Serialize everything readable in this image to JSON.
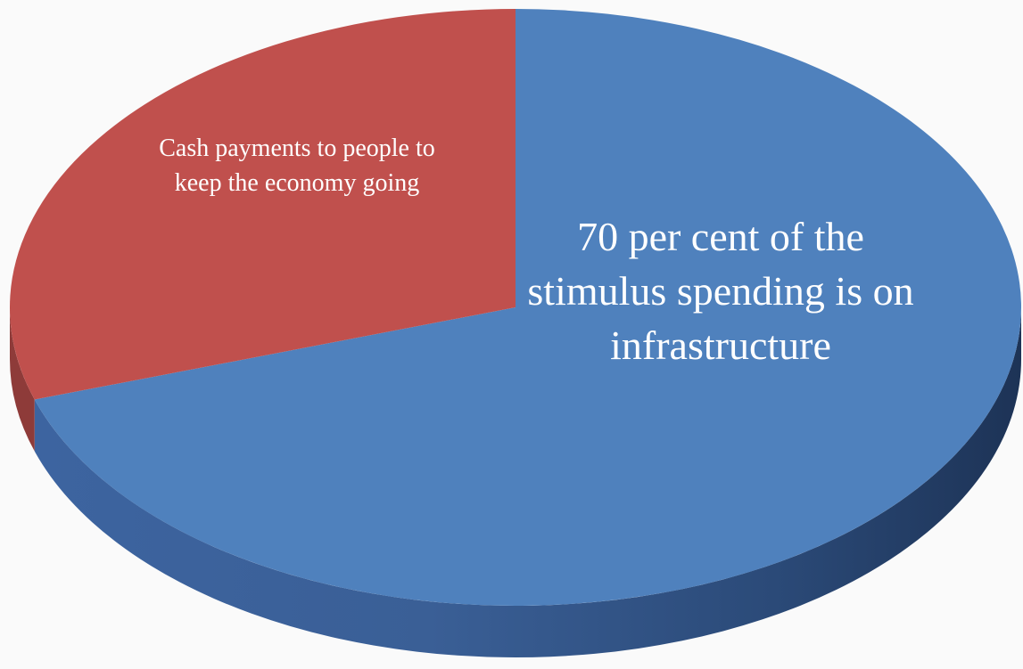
{
  "chart_data": {
    "type": "pie",
    "style": "3d",
    "slices": [
      {
        "label": "70 per cent of the stimulus spending is on infrastructure",
        "label_lines": [
          "70 per cent of the",
          "stimulus spending is on",
          "infrastructure"
        ],
        "value": 70,
        "color": "#4f81bd"
      },
      {
        "label": "Cash payments to people to keep the economy going",
        "label_lines": [
          "Cash payments to people to",
          "keep the economy going"
        ],
        "value": 30,
        "color": "#c0504d"
      }
    ],
    "legend": "none",
    "background": "#fafafa"
  }
}
